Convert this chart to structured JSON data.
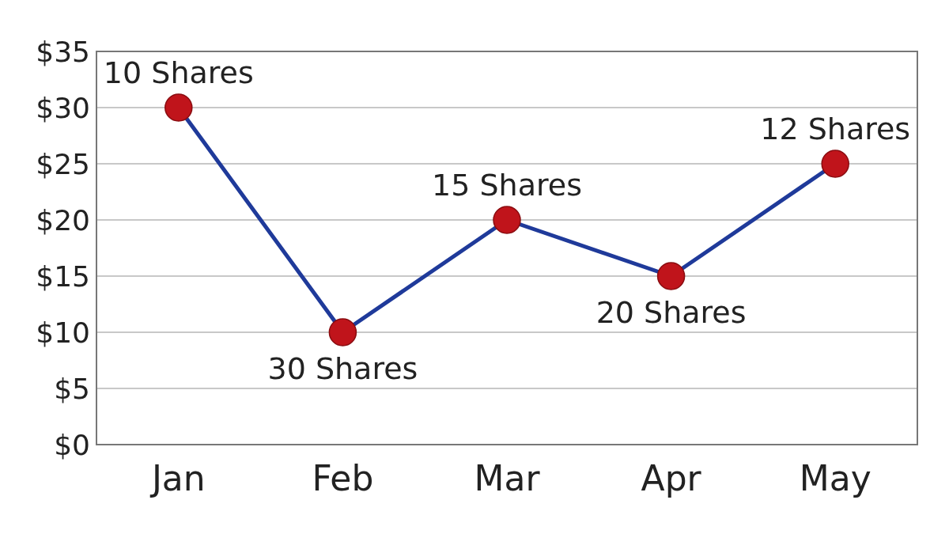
{
  "chart_data": {
    "type": "line",
    "categories": [
      "Jan",
      "Feb",
      "Mar",
      "Apr",
      "May"
    ],
    "series": [
      {
        "color": "#1f3a9a",
        "colors": [
          "#c0141b",
          "#c0141b",
          "#c0141b",
          "#c0141b",
          "#c0141b"
        ],
        "values": [
          30,
          10,
          20,
          15,
          25
        ]
      }
    ],
    "ylim": [
      0,
      35
    ],
    "yticks": [
      {
        "value": 0,
        "label": "$0"
      },
      {
        "value": 5,
        "label": "$5"
      },
      {
        "value": 10,
        "label": "$10"
      },
      {
        "value": 15,
        "label": "$15"
      },
      {
        "value": 20,
        "label": "$20"
      },
      {
        "value": 25,
        "label": "$25"
      },
      {
        "value": 30,
        "label": "$30"
      },
      {
        "value": 35,
        "label": "$35"
      }
    ],
    "grid": "y",
    "marker": "circle",
    "line_style": "solid",
    "annotations": [
      {
        "text": "10 Shares",
        "x": "Jan",
        "y": 30
      },
      {
        "text": "30 Shares",
        "x": "Feb",
        "y": 10
      },
      {
        "text": "15 Shares",
        "x": "Mar",
        "y": 20
      },
      {
        "text": "20 Shares",
        "x": "Apr",
        "y": 15
      },
      {
        "text": "12 Shares",
        "x": "May",
        "y": 25
      }
    ]
  }
}
